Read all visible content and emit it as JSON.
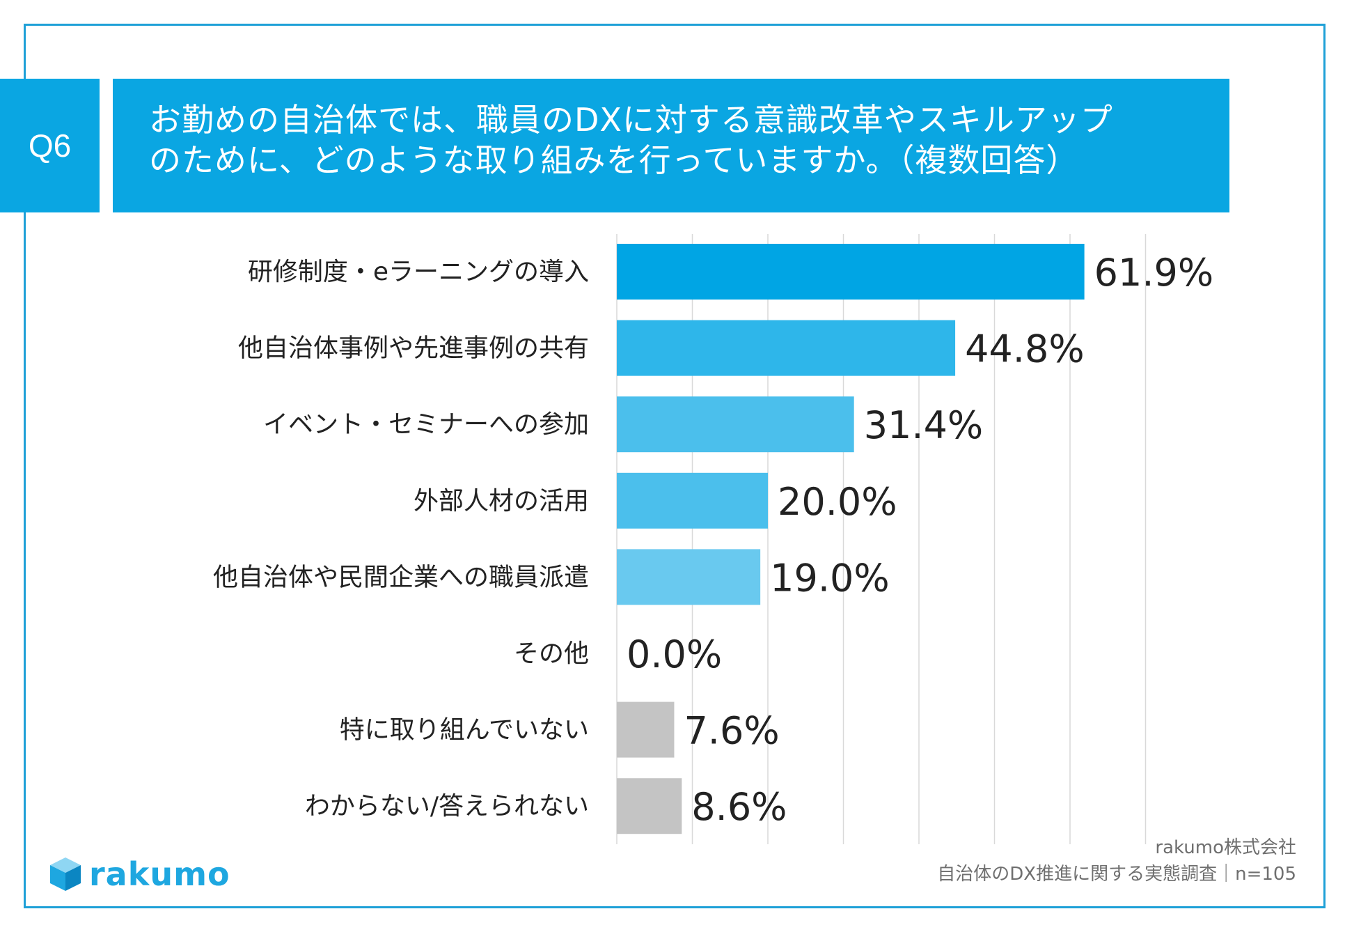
{
  "question": {
    "number": "Q6",
    "title_line1": "お勤めの自治体では、職員のDXに対する意識改革やスキルアップ",
    "title_line2": "のために、どのような取り組みを行っていますか。（複数回答）"
  },
  "chart_data": {
    "type": "bar",
    "orientation": "horizontal",
    "categories": [
      "研修制度・eラーニングの導入",
      "他自治体事例や先進事例の共有",
      "イベント・セミナーへの参加",
      "外部人材の活用",
      "他自治体や民間企業への職員派遣",
      "その他",
      "特に取り組んでいない",
      "わからない/答えられない"
    ],
    "values": [
      61.9,
      44.8,
      31.4,
      20.0,
      19.0,
      0.0,
      7.6,
      8.6
    ],
    "labels": [
      "61.9%",
      "44.8%",
      "31.4%",
      "20.0%",
      "19.0%",
      "0.0%",
      "7.6%",
      "8.6%"
    ],
    "bar_colors": [
      "#00a5e4",
      "#2eb6ea",
      "#4bbfec",
      "#4bbfec",
      "#69c9ef",
      "#69c9ef",
      "#c4c4c4",
      "#c4c4c4"
    ],
    "xlim": [
      0,
      70
    ],
    "grid": true
  },
  "footer": {
    "logo_text": "rakumo",
    "source_company": "rakumo株式会社",
    "source_survey": "自治体のDX推進に関する実態調査｜n=105"
  },
  "colors": {
    "accent": "#0aa6e2",
    "frame": "#1ea0d7",
    "gray_bar": "#c4c4c4"
  }
}
